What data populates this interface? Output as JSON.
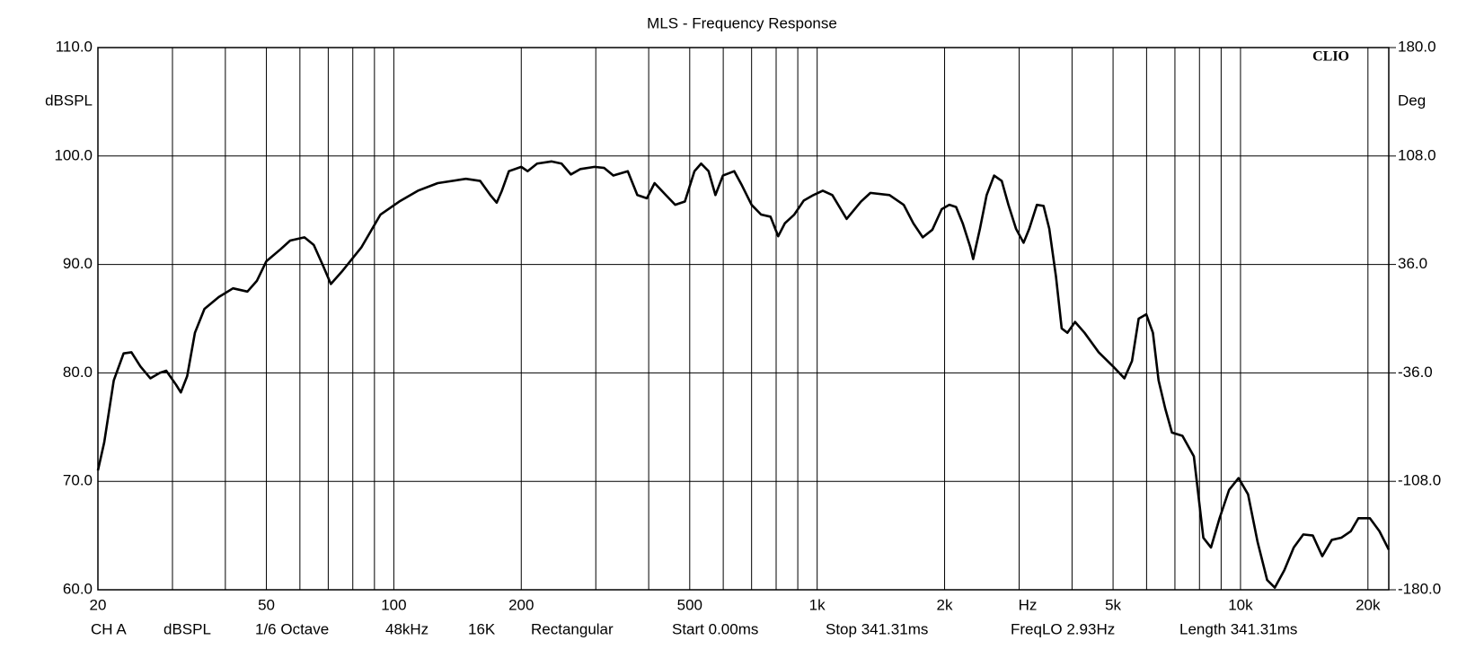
{
  "chart_data": {
    "type": "line",
    "title": "MLS - Frequency Response",
    "y_label": "dBSPL",
    "y2_label": "Deg",
    "x_label": "Hz",
    "annotation": "CLIO",
    "footer": [
      "CH A",
      "dBSPL",
      "1/6 Octave",
      "48kHz",
      "16K",
      "Rectangular",
      "Start 0.00ms",
      "Stop 341.31ms",
      "FreqLO 2.93Hz",
      "Length 341.31ms"
    ],
    "xscale": "log",
    "grid": true,
    "xlim": [
      20,
      22400
    ],
    "xticks": [
      20,
      50,
      100,
      200,
      500,
      {
        "value": 1000,
        "label": "1k"
      },
      {
        "value": 2000,
        "label": "2k"
      },
      {
        "value": 5000,
        "label": "5k"
      },
      {
        "value": 10000,
        "label": "10k"
      },
      {
        "value": 20000,
        "label": "20k"
      }
    ],
    "minor_xticks": [
      30,
      40,
      60,
      70,
      80,
      90,
      300,
      400,
      600,
      700,
      800,
      900,
      3000,
      4000,
      6000,
      7000,
      8000,
      9000
    ],
    "ylim": [
      60,
      110
    ],
    "yticks": [
      {
        "value": 60,
        "label": "60.0"
      },
      {
        "value": 70,
        "label": "70.0"
      },
      {
        "value": 80,
        "label": "80.0"
      },
      {
        "value": 90,
        "label": "90.0"
      },
      {
        "value": 100,
        "label": "100.0"
      },
      {
        "value": 110,
        "label": "110.0"
      }
    ],
    "y2lim": [
      -180,
      180
    ],
    "y2ticks": [
      {
        "value": -180,
        "label": "-180.0"
      },
      {
        "value": -108,
        "label": "-108.0"
      },
      {
        "value": -36,
        "label": "-36.0"
      },
      {
        "value": 36,
        "label": "36.0"
      },
      {
        "value": 108,
        "label": "108.0"
      },
      {
        "value": 180,
        "label": "180.0"
      }
    ],
    "x": [
      20,
      20.7,
      21.8,
      23.0,
      24.0,
      25.2,
      26.6,
      28.0,
      29.0,
      30.6,
      31.4,
      32.5,
      33.9,
      35.7,
      38.6,
      41.7,
      45.1,
      47.5,
      50.0,
      54.0,
      56.9,
      61.5,
      64.7,
      68.2,
      71.0,
      75.6,
      83.9,
      93,
      103,
      114,
      127,
      148,
      160,
      169,
      175,
      180,
      187,
      200,
      207,
      218,
      236,
      249,
      262,
      276,
      298,
      314,
      330,
      357,
      376,
      396,
      413,
      439,
      462,
      487,
      513,
      532,
      554,
      575,
      599,
      637,
      664,
      700,
      737,
      776,
      809,
      839,
      883,
      930,
      980,
      1031,
      1086,
      1174,
      1269,
      1336,
      1482,
      1601,
      1687,
      1776,
      1871,
      1969,
      2052,
      2129,
      2207,
      2300,
      2336,
      2424,
      2514,
      2618,
      2729,
      2830,
      2949,
      3073,
      3170,
      3304,
      3426,
      3534,
      3665,
      3781,
      3900,
      4066,
      4281,
      4624,
      5000,
      5318,
      5543,
      5747,
      5990,
      6210,
      6405,
      6642,
      6888,
      7292,
      7760,
      8170,
      8517,
      8924,
      9396,
      9895,
      10420,
      10975,
      11560,
      12050,
      12690,
      13360,
      14070,
      14820,
      15600,
      16430,
      17300,
      18220,
      18990,
      20210,
      21290,
      22400
    ],
    "series": [
      {
        "name": "CH A",
        "color": "#000000",
        "values": [
          71.0,
          73.6,
          79.3,
          81.8,
          81.9,
          80.6,
          79.5,
          80.0,
          80.2,
          78.9,
          78.2,
          79.7,
          83.7,
          85.9,
          87.0,
          87.8,
          87.5,
          88.5,
          90.3,
          91.4,
          92.2,
          92.5,
          91.8,
          89.8,
          88.2,
          89.4,
          91.6,
          94.6,
          95.8,
          96.8,
          97.5,
          97.9,
          97.7,
          96.4,
          95.7,
          96.8,
          98.6,
          99.0,
          98.6,
          99.3,
          99.5,
          99.3,
          98.3,
          98.8,
          99.0,
          98.9,
          98.2,
          98.6,
          96.4,
          96.1,
          97.5,
          96.4,
          95.5,
          95.8,
          98.6,
          99.3,
          98.6,
          96.4,
          98.2,
          98.6,
          97.3,
          95.5,
          94.6,
          94.4,
          92.6,
          93.8,
          94.6,
          95.9,
          96.4,
          96.8,
          96.4,
          94.2,
          95.8,
          96.6,
          96.4,
          95.5,
          93.8,
          92.5,
          93.2,
          95.1,
          95.5,
          95.3,
          93.8,
          91.6,
          90.5,
          93.3,
          96.4,
          98.2,
          97.7,
          95.5,
          93.3,
          92.0,
          93.3,
          95.5,
          95.4,
          93.3,
          88.9,
          84.1,
          83.7,
          84.7,
          83.7,
          81.9,
          80.6,
          79.5,
          81.1,
          85.0,
          85.4,
          83.7,
          79.3,
          76.7,
          74.5,
          74.2,
          72.3,
          64.8,
          63.9,
          66.6,
          69.2,
          70.3,
          68.8,
          64.4,
          60.9,
          60.2,
          61.8,
          63.9,
          65.1,
          65.0,
          63.1,
          64.6,
          64.8,
          65.4,
          66.6,
          66.6,
          65.4,
          63.7
        ]
      }
    ]
  }
}
